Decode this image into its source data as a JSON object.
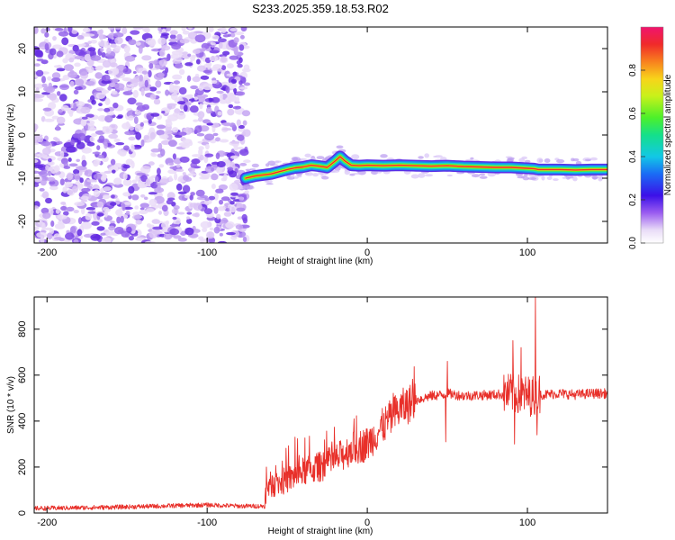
{
  "title": "S233.2025.359.18.53.R02",
  "chart_data": [
    {
      "type": "heatmap",
      "name": "spectrogram",
      "xlabel": "Height of straight line (km)",
      "ylabel": "Frequency (Hz)",
      "xlim": [
        -208,
        150
      ],
      "ylim": [
        -25,
        25
      ],
      "xticks": [
        -200,
        -100,
        0,
        100
      ],
      "xtick_labels": [
        "-200",
        "-100",
        "0",
        "100"
      ],
      "yticks": [
        -20,
        -10,
        0,
        10,
        20
      ],
      "ytick_labels": [
        "-20",
        "-10",
        "0",
        "10",
        "20"
      ],
      "noise_region_x": [
        -208,
        -75
      ],
      "signal_track": {
        "x": [
          -76,
          -70,
          -60,
          -55,
          -50,
          -45,
          -40,
          -35,
          -30,
          -25,
          -20,
          -17,
          -14,
          -10,
          -5,
          0,
          10,
          20,
          30,
          40,
          50,
          60,
          70,
          80,
          90,
          95,
          100,
          104,
          107,
          110,
          120,
          130,
          140,
          150
        ],
        "y": [
          -10,
          -9.5,
          -9,
          -8.5,
          -8,
          -7.6,
          -7.4,
          -7,
          -7.2,
          -7.5,
          -6,
          -5,
          -6,
          -7,
          -7.1,
          -7,
          -7.1,
          -7,
          -7.1,
          -7.2,
          -7.1,
          -7.3,
          -7.4,
          -7.5,
          -7.5,
          -7.6,
          -7.7,
          -7.8,
          -8,
          -8,
          -8,
          -8.1,
          -8,
          -8
        ]
      },
      "colorbar": {
        "label": "Normalized spectral amplitude",
        "range": [
          0,
          1
        ],
        "ticks": [
          0.0,
          0.2,
          0.4,
          0.6,
          0.8
        ],
        "tick_labels": [
          "0.0",
          "0.2",
          "0.4",
          "0.6",
          "0.8"
        ]
      }
    },
    {
      "type": "line",
      "name": "snr",
      "xlabel": "Height of straight line (km)",
      "ylabel": "SNR (10 * v/v)",
      "xlim": [
        -208,
        150
      ],
      "ylim": [
        0,
        940
      ],
      "xticks": [
        -200,
        -100,
        0,
        100
      ],
      "xtick_labels": [
        "-200",
        "-100",
        "0",
        "100"
      ],
      "yticks": [
        0,
        200,
        400,
        600,
        800
      ],
      "ytick_labels": [
        "0",
        "200",
        "400",
        "600",
        "800"
      ],
      "color": "#e8302a",
      "key_points": {
        "x": [
          -208,
          -160,
          -130,
          -100,
          -80,
          -64,
          -63,
          -55,
          -45,
          -40,
          -30,
          -20,
          -10,
          0,
          10,
          20,
          30,
          40,
          48,
          50,
          60,
          80,
          90,
          95,
          100,
          105,
          106,
          110,
          120,
          130,
          140,
          150
        ],
        "y": [
          20,
          25,
          30,
          35,
          30,
          30,
          120,
          130,
          160,
          180,
          200,
          230,
          280,
          300,
          380,
          450,
          490,
          510,
          515,
          520,
          510,
          515,
          520,
          515,
          510,
          510,
          520,
          515,
          520,
          515,
          520,
          520
        ]
      },
      "spikes": [
        {
          "x": -63,
          "y": 200
        },
        {
          "x": -45,
          "y": 330
        },
        {
          "x": -22,
          "y": 310
        },
        {
          "x": 50,
          "y": 660
        },
        {
          "x": 49,
          "y": 310
        },
        {
          "x": 91,
          "y": 750
        },
        {
          "x": 92,
          "y": 300
        },
        {
          "x": 96,
          "y": 720
        },
        {
          "x": 105,
          "y": 950
        },
        {
          "x": 106,
          "y": 340
        }
      ]
    }
  ]
}
